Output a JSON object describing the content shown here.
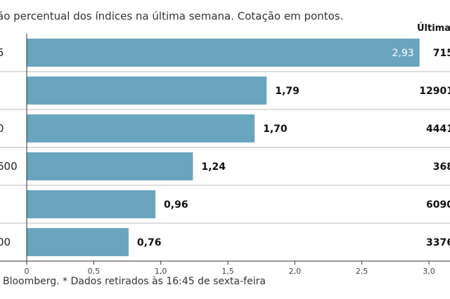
{
  "header": {
    "subtitle": "ão percentual dos índices na última semana. Cotação em pontos.",
    "column_header": "Última c"
  },
  "footer": {
    "note": " Bloomberg.  * Dados retirados às 16:45 de sexta-feira"
  },
  "colors": {
    "bar": "#6aa5bf",
    "row_line": "#bdbdbd",
    "axis": "#333333"
  },
  "chart_data": {
    "type": "bar",
    "orientation": "horizontal",
    "categories": [
      "5",
      "",
      "0",
      "600",
      "",
      "00"
    ],
    "values": [
      2.93,
      1.79,
      1.7,
      1.24,
      0.96,
      0.76
    ],
    "value_labels": [
      "2,93",
      "1,79",
      "1,70",
      "1,24",
      "0,96",
      "0,76"
    ],
    "last_values": [
      "715",
      "12901",
      "4441",
      "368",
      "6090",
      "3376"
    ],
    "xlim": [
      0,
      3.0
    ],
    "xticks": [
      0,
      0.5,
      1.0,
      1.5,
      2.0,
      2.5,
      3.0
    ],
    "xtick_labels": [
      "0",
      "0,5",
      "1,0",
      "1,5",
      "2,0",
      "2,5",
      "3,0"
    ],
    "grid": false,
    "legend": "none"
  }
}
